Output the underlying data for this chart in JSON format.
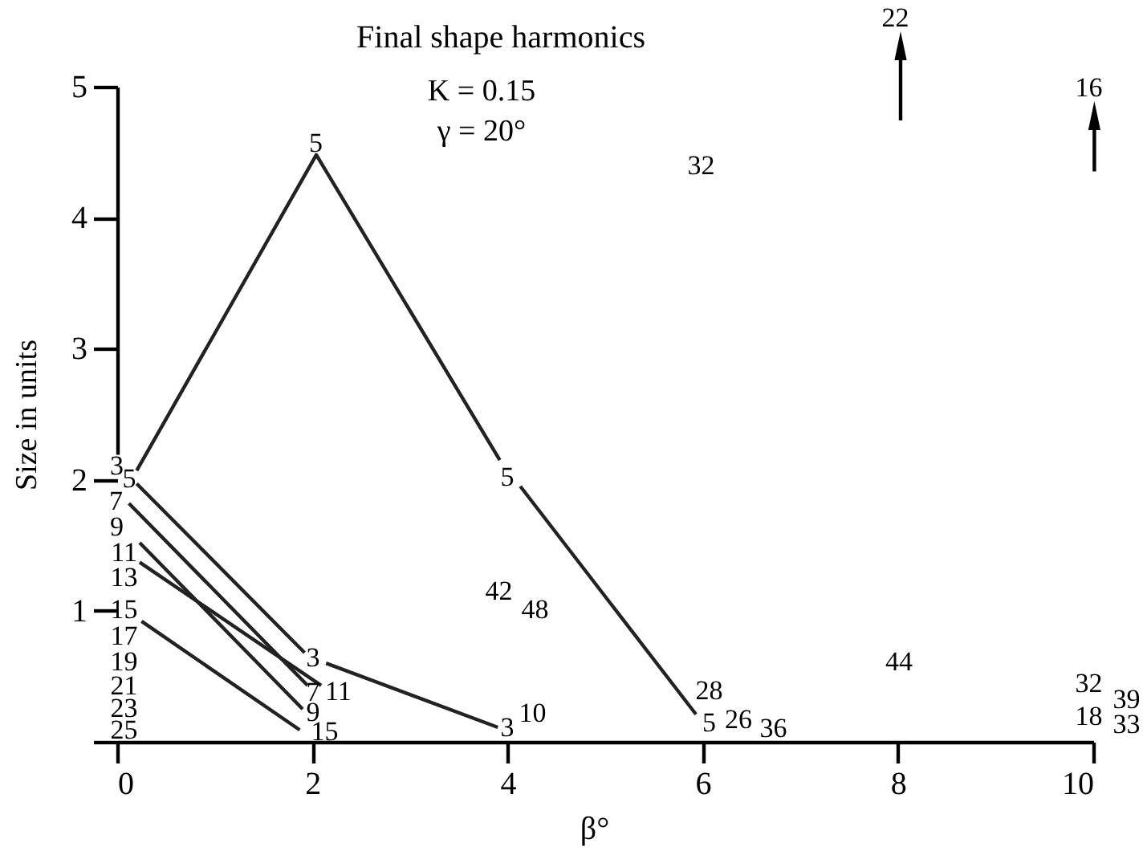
{
  "chart_data": {
    "type": "line",
    "title": "Final shape harmonics",
    "xlabel": "β°",
    "ylabel": "Size in units",
    "xlim": [
      0,
      10
    ],
    "ylim": [
      0,
      5
    ],
    "xticks": [
      0,
      2,
      4,
      6,
      8,
      10
    ],
    "yticks": [
      {
        "value": 0,
        "label": null
      },
      1,
      2,
      3,
      4,
      5
    ],
    "series": [
      {
        "color": "#222222",
        "x": [
          0.2,
          2.04,
          3.92
        ],
        "values": [
          2.07,
          4.48,
          2.15
        ]
      },
      {
        "color": "#222222",
        "x": [
          4.13,
          5.93
        ],
        "values": [
          1.95,
          0.21
        ]
      },
      {
        "color": "#222222",
        "x": [
          0.2,
          1.92
        ],
        "values": [
          1.97,
          0.68
        ]
      },
      {
        "color": "#222222",
        "x": [
          2.14,
          3.9
        ],
        "values": [
          0.6,
          0.11
        ]
      },
      {
        "color": "#222222",
        "x": [
          0.12,
          1.95
        ],
        "values": [
          1.82,
          0.43
        ]
      },
      {
        "color": "#222222",
        "x": [
          0.23,
          1.9
        ],
        "values": [
          1.52,
          0.25
        ]
      },
      {
        "color": "#222222",
        "x": [
          0.23,
          2.09
        ],
        "values": [
          1.37,
          0.43
        ]
      },
      {
        "color": "#222222",
        "x": [
          0.25,
          1.87
        ],
        "values": [
          0.92,
          0.09
        ]
      }
    ],
    "annotations": [
      "K = 0.15",
      "γ = 20°",
      "22",
      "16",
      "3",
      "5",
      "7",
      "9",
      "11",
      "13",
      "15",
      "17",
      "19",
      "21",
      "23",
      "25",
      "5",
      "3",
      "7",
      "11",
      "9",
      "15",
      "5",
      "42",
      "48",
      "3",
      "10",
      "32",
      "28",
      "5",
      "26",
      "36",
      "44",
      "32",
      "18",
      "39",
      "33"
    ]
  }
}
